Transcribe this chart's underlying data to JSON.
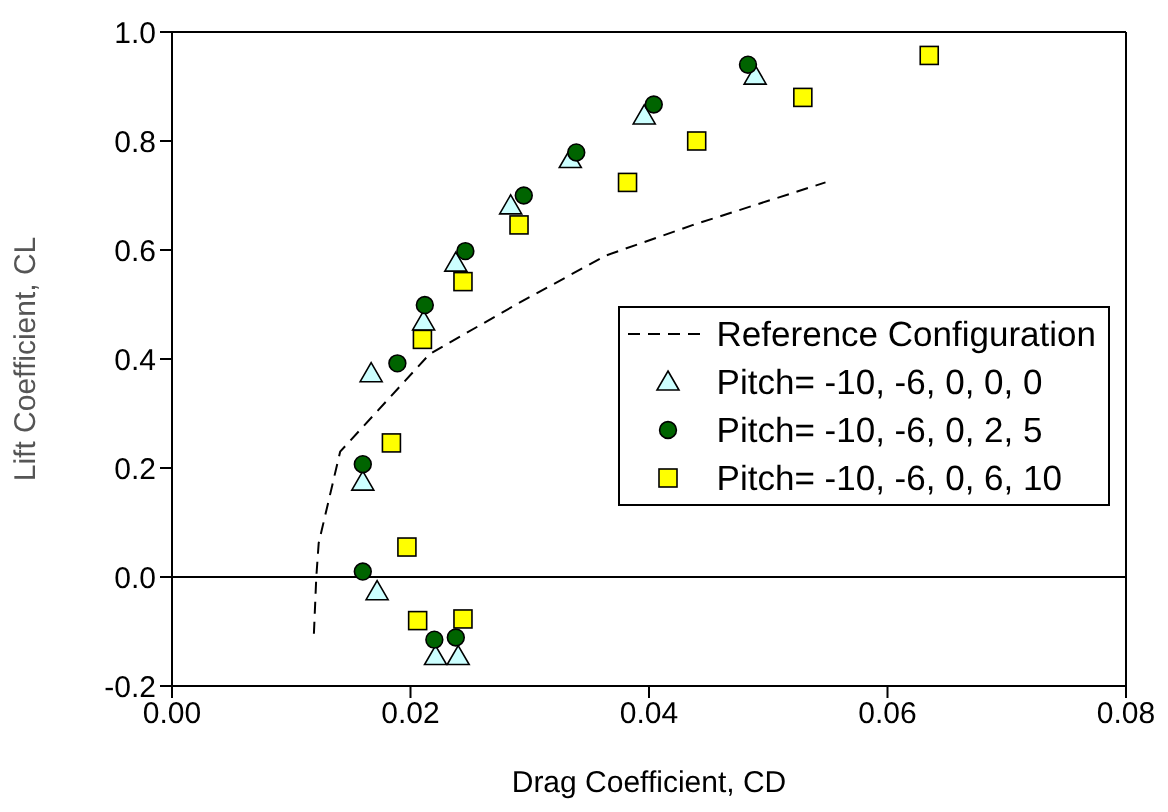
{
  "chart_data": {
    "type": "scatter",
    "xlabel": "Drag Coefficient, CD",
    "ylabel": "Lift Coefficient, CL",
    "xlim": [
      0,
      0.08
    ],
    "xticks": [
      {
        "value": 0,
        "label": "0.00"
      },
      {
        "value": 0.02,
        "label": "0.02"
      },
      {
        "value": 0.04,
        "label": "0.04"
      },
      {
        "value": 0.06,
        "label": "0.06"
      },
      {
        "value": 0.08,
        "label": "0.08"
      }
    ],
    "ylim": [
      -0.2,
      1.0
    ],
    "yticks": [
      {
        "value": -0.2,
        "label": "-0.2"
      },
      {
        "value": 0,
        "label": "0.0"
      },
      {
        "value": 0.2,
        "label": "0.2"
      },
      {
        "value": 0.4,
        "label": "0.4"
      },
      {
        "value": 0.6,
        "label": "0.6"
      },
      {
        "value": 0.8,
        "label": "0.8"
      },
      {
        "value": 1.0,
        "label": "1.0"
      }
    ],
    "grid": false,
    "legend": "right",
    "ref_lines": [
      {
        "axis": "y",
        "value": 0,
        "color": "#000000"
      }
    ],
    "series": [
      {
        "name": "Reference Configuration",
        "type": "line",
        "color": "#000000",
        "line_style": "dashed",
        "marker": "none",
        "x": [
          0.0119,
          0.0121,
          0.0123,
          0.0141,
          0.0216,
          0.0291,
          0.0364,
          0.0437,
          0.0548
        ],
        "values": [
          -0.104,
          0,
          0.062,
          0.23,
          0.409,
          0.503,
          0.59,
          0.646,
          0.724
        ]
      },
      {
        "name": "Pitch= -10, -6, 0, 0, 0",
        "color": "#ccffff",
        "marker": "triangle",
        "x": [
          0.0167,
          0.016,
          0.0172,
          0.0221,
          0.024,
          0.0211,
          0.0238,
          0.0284,
          0.0334,
          0.0396,
          0.0489
        ],
        "values": [
          0.373,
          0.174,
          -0.027,
          -0.146,
          -0.146,
          0.468,
          0.576,
          0.681,
          0.766,
          0.846,
          0.919
        ]
      },
      {
        "name": "Pitch= -10, -6, 0, 2, 5",
        "color": "#006400",
        "marker": "circle",
        "x": [
          0.0189,
          0.016,
          0.016,
          0.022,
          0.0238,
          0.0212,
          0.0246,
          0.0295,
          0.0339,
          0.0404,
          0.0483
        ],
        "values": [
          0.392,
          0.207,
          0.01,
          -0.115,
          -0.111,
          0.499,
          0.598,
          0.7,
          0.779,
          0.867,
          0.94
        ]
      },
      {
        "name": "Pitch= -10, -6, 0, 6, 10",
        "color": "#ffff00",
        "marker": "square",
        "x": [
          0.0184,
          0.0197,
          0.0206,
          0.0244,
          0.021,
          0.0244,
          0.0291,
          0.0382,
          0.044,
          0.0529,
          0.0635
        ],
        "values": [
          0.246,
          0.055,
          -0.08,
          -0.077,
          0.436,
          0.542,
          0.646,
          0.724,
          0.8,
          0.88,
          0.957
        ]
      }
    ]
  }
}
